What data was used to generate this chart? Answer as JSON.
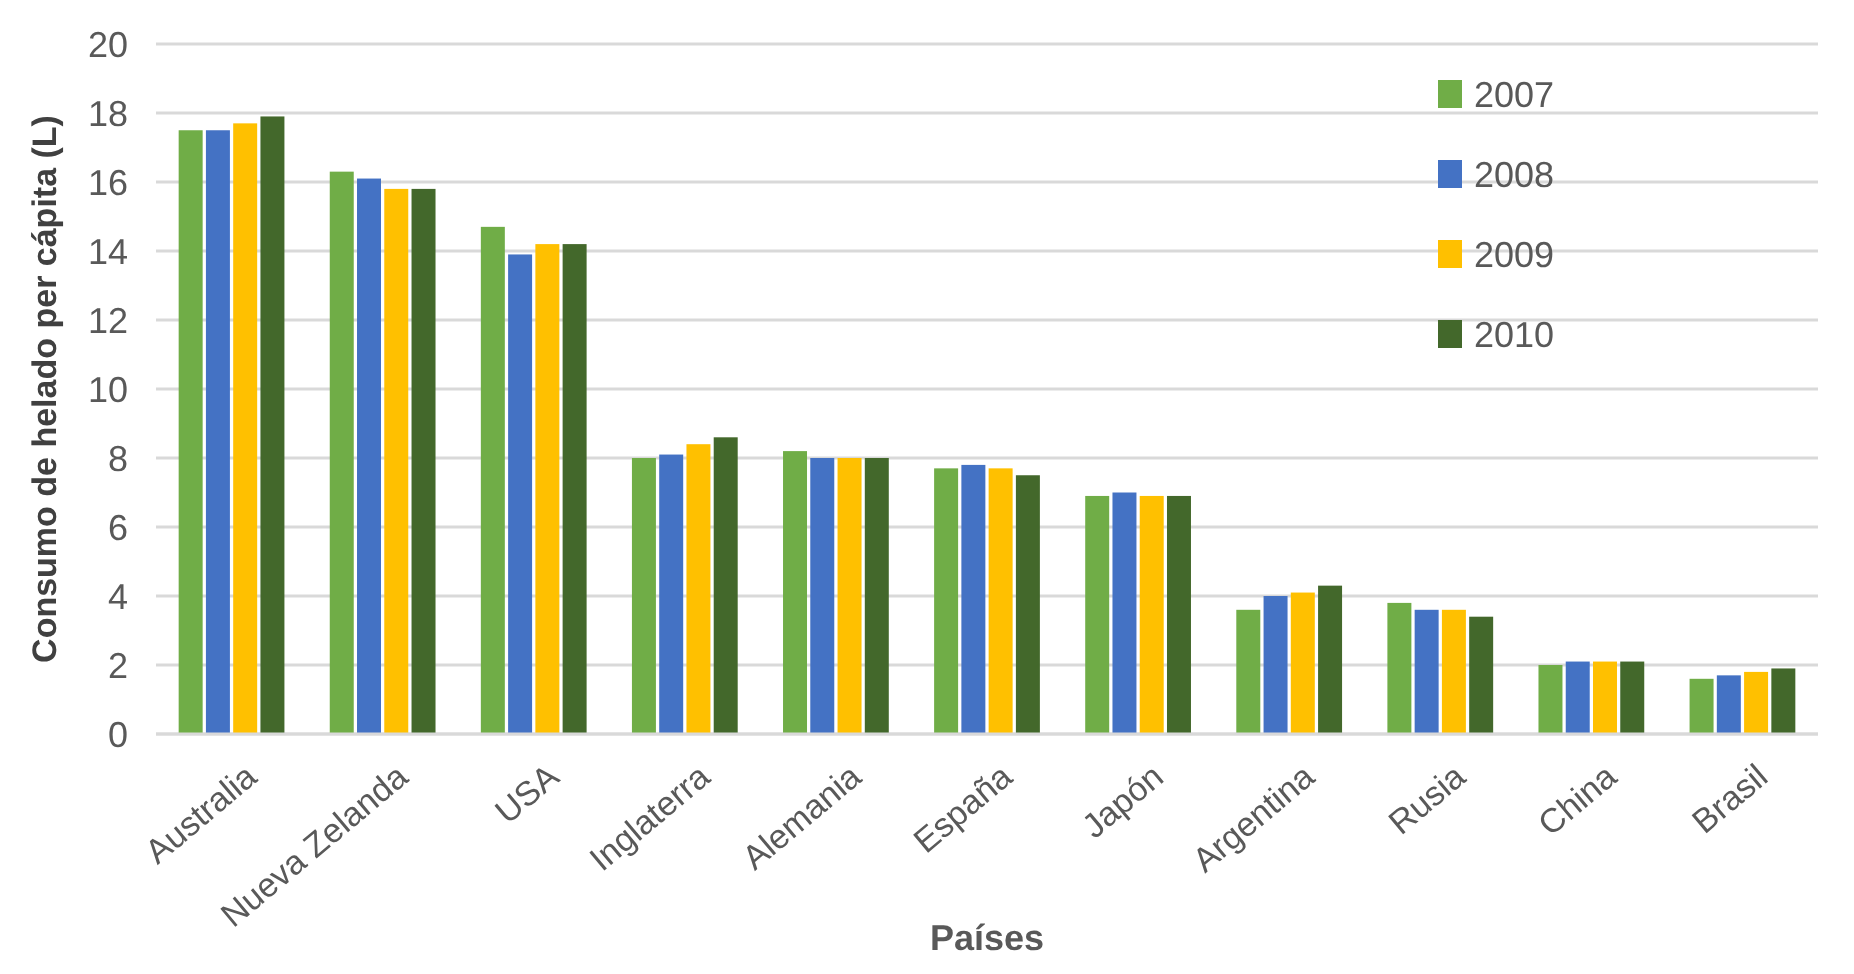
{
  "chart_data": {
    "type": "bar",
    "xlabel": "Países",
    "ylabel": "Consumo de helado per cápita (L)",
    "categories": [
      "Australia",
      "Nueva Zelanda",
      "USA",
      "Inglaterra",
      "Alemania",
      "España",
      "Japón",
      "Argentina",
      "Rusia",
      "China",
      "Brasil"
    ],
    "series": [
      {
        "name": "2007",
        "color": "#70ad47",
        "values": [
          17.5,
          16.3,
          14.7,
          8.0,
          8.2,
          7.7,
          6.9,
          3.6,
          3.8,
          2.0,
          1.6
        ]
      },
      {
        "name": "2008",
        "color": "#4472c4",
        "values": [
          17.5,
          16.1,
          13.9,
          8.1,
          8.0,
          7.8,
          7.0,
          4.0,
          3.6,
          2.1,
          1.7
        ]
      },
      {
        "name": "2009",
        "color": "#ffc000",
        "values": [
          17.7,
          15.8,
          14.2,
          8.4,
          8.0,
          7.7,
          6.9,
          4.1,
          3.6,
          2.1,
          1.8
        ]
      },
      {
        "name": "2010",
        "color": "#43682b",
        "values": [
          17.9,
          15.8,
          14.2,
          8.6,
          8.0,
          7.5,
          6.9,
          4.3,
          3.4,
          2.1,
          1.9
        ]
      }
    ],
    "ylim": [
      0,
      20
    ],
    "yticks": [
      0,
      2,
      4,
      6,
      8,
      10,
      12,
      14,
      16,
      18,
      20
    ],
    "grid": "y",
    "legend": "top right"
  }
}
